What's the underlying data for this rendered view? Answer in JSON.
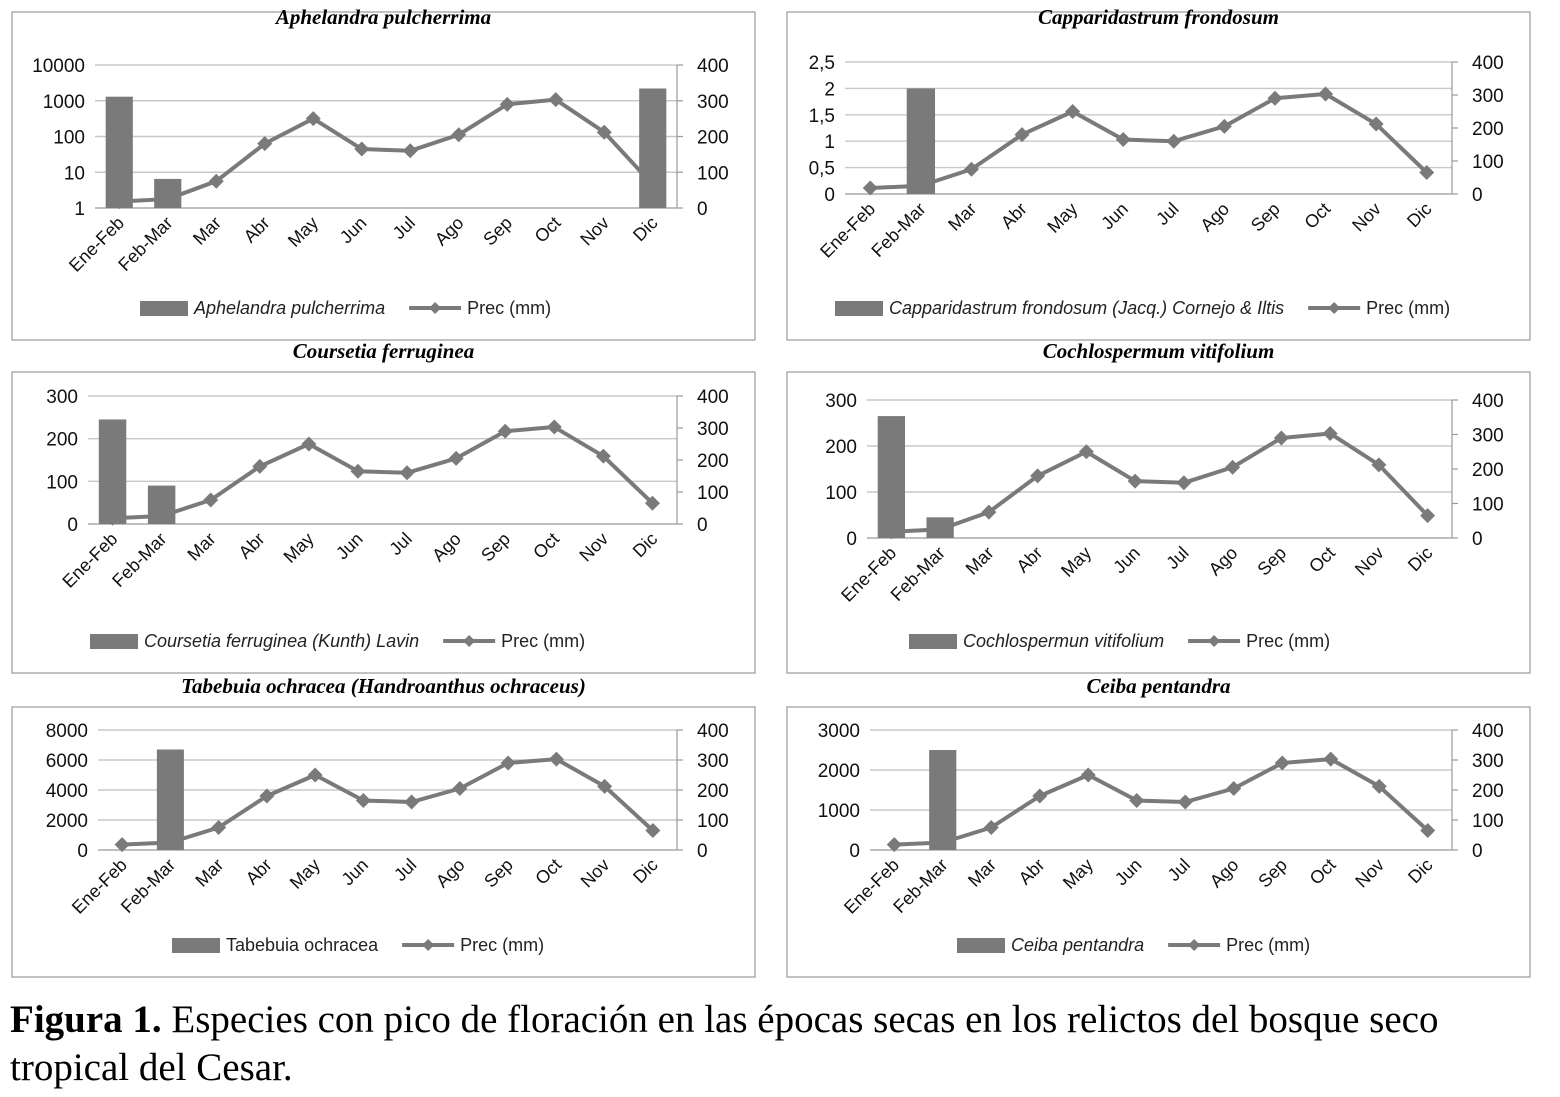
{
  "caption": {
    "label": "Figura 1.",
    "text": " Especies con pico de floración en las épocas secas en los relictos del bosque seco tropical del Cesar."
  },
  "style": {
    "bar_color": "#7a7a7a",
    "line_color": "#7a7a7a",
    "grid_color": "#c8c8c8",
    "frame_color": "#999999"
  },
  "legend": {
    "line_label": "Prec (mm)"
  },
  "chart_data": [
    {
      "type": "bar+line",
      "title": "Aphelandra pulcherrima",
      "categories": [
        "Ene-Feb",
        "Feb-Mar",
        "Mar",
        "Abr",
        "May",
        "Jun",
        "Jul",
        "Ago",
        "Sep",
        "Oct",
        "Nov",
        "Dic"
      ],
      "left_axis": {
        "scale": "log",
        "ylim": [
          1,
          10000
        ],
        "ticks": [
          1,
          10,
          100,
          1000,
          10000
        ],
        "tick_labels": [
          "1",
          "10",
          "100",
          "1000",
          "10000"
        ]
      },
      "right_axis": {
        "ylim": [
          0,
          400
        ],
        "ticks": [
          0,
          100,
          200,
          300,
          400
        ],
        "tick_labels": [
          "0",
          "100",
          "200",
          "300",
          "400"
        ]
      },
      "bars": {
        "name": "Aphelandra pulcherrima",
        "name_style": "italic",
        "values": [
          1300,
          6.5,
          null,
          null,
          null,
          null,
          null,
          null,
          null,
          null,
          null,
          2200
        ]
      },
      "line": {
        "name": "Prec (mm)",
        "values": [
          18,
          25,
          75,
          180,
          250,
          165,
          160,
          205,
          290,
          303,
          212,
          65
        ]
      }
    },
    {
      "type": "bar+line",
      "title": "Capparidastrum frondosum",
      "categories": [
        "Ene-Feb",
        "Feb-Mar",
        "Mar",
        "Abr",
        "May",
        "Jun",
        "Jul",
        "Ago",
        "Sep",
        "Oct",
        "Nov",
        "Dic"
      ],
      "left_axis": {
        "ylim": [
          0,
          2.5
        ],
        "ticks": [
          0,
          0.5,
          1,
          1.5,
          2,
          2.5
        ],
        "tick_labels": [
          "0",
          "0,5",
          "1",
          "1,5",
          "2",
          "2,5"
        ]
      },
      "right_axis": {
        "ylim": [
          0,
          400
        ],
        "ticks": [
          0,
          100,
          200,
          300,
          400
        ],
        "tick_labels": [
          "0",
          "100",
          "200",
          "300",
          "400"
        ]
      },
      "bars": {
        "name": "Capparidastrum frondosum (Jacq.) Cornejo & Iltis",
        "name_style": "italic",
        "values": [
          null,
          2,
          null,
          null,
          null,
          null,
          null,
          null,
          null,
          null,
          null,
          null
        ]
      },
      "line": {
        "name": "Prec (mm)",
        "values": [
          18,
          25,
          75,
          180,
          250,
          165,
          160,
          205,
          290,
          303,
          212,
          65
        ]
      }
    },
    {
      "type": "bar+line",
      "title": "Coursetia ferruginea",
      "categories": [
        "Ene-Feb",
        "Feb-Mar",
        "Mar",
        "Abr",
        "May",
        "Jun",
        "Jul",
        "Ago",
        "Sep",
        "Oct",
        "Nov",
        "Dic"
      ],
      "left_axis": {
        "ylim": [
          0,
          300
        ],
        "ticks": [
          0,
          100,
          200,
          300
        ],
        "tick_labels": [
          "0",
          "100",
          "200",
          "300"
        ]
      },
      "right_axis": {
        "ylim": [
          0,
          400
        ],
        "ticks": [
          0,
          100,
          200,
          300,
          400
        ],
        "tick_labels": [
          "0",
          "100",
          "200",
          "300",
          "400"
        ]
      },
      "bars": {
        "name": "Coursetia ferruginea (Kunth) Lavin",
        "name_style": "italic",
        "values": [
          245,
          90,
          null,
          null,
          null,
          null,
          null,
          null,
          null,
          null,
          null,
          null
        ]
      },
      "line": {
        "name": "Prec (mm)",
        "values": [
          18,
          25,
          75,
          180,
          250,
          165,
          160,
          205,
          290,
          303,
          212,
          65
        ]
      }
    },
    {
      "type": "bar+line",
      "title": "Cochlospermum  vitifolium",
      "categories": [
        "Ene-Feb",
        "Feb-Mar",
        "Mar",
        "Abr",
        "May",
        "Jun",
        "Jul",
        "Ago",
        "Sep",
        "Oct",
        "Nov",
        "Dic"
      ],
      "left_axis": {
        "ylim": [
          0,
          300
        ],
        "ticks": [
          0,
          100,
          200,
          300
        ],
        "tick_labels": [
          "0",
          "100",
          "200",
          "300"
        ]
      },
      "right_axis": {
        "ylim": [
          0,
          400
        ],
        "ticks": [
          0,
          100,
          200,
          300,
          400
        ],
        "tick_labels": [
          "0",
          "100",
          "200",
          "300",
          "400"
        ]
      },
      "bars": {
        "name": "Cochlospermun vitifolium",
        "name_style": "italic",
        "values": [
          265,
          45,
          null,
          null,
          null,
          null,
          null,
          null,
          null,
          null,
          null,
          null
        ]
      },
      "line": {
        "name": "Prec (mm)",
        "values": [
          18,
          25,
          75,
          180,
          250,
          165,
          160,
          205,
          290,
          303,
          212,
          65
        ]
      }
    },
    {
      "type": "bar+line",
      "title": "Tabebuia ochracea (Handroanthus ochraceus)",
      "categories": [
        "Ene-Feb",
        "Feb-Mar",
        "Mar",
        "Abr",
        "May",
        "Jun",
        "Jul",
        "Ago",
        "Sep",
        "Oct",
        "Nov",
        "Dic"
      ],
      "left_axis": {
        "ylim": [
          0,
          8000
        ],
        "ticks": [
          0,
          2000,
          4000,
          6000,
          8000
        ],
        "tick_labels": [
          "0",
          "2000",
          "4000",
          "6000",
          "8000"
        ]
      },
      "right_axis": {
        "ylim": [
          0,
          400
        ],
        "ticks": [
          0,
          100,
          200,
          300,
          400
        ],
        "tick_labels": [
          "0",
          "100",
          "200",
          "300",
          "400"
        ]
      },
      "bars": {
        "name": "Tabebuia ochracea",
        "name_style": "normal",
        "values": [
          null,
          6700,
          null,
          null,
          null,
          null,
          null,
          null,
          null,
          null,
          null,
          null
        ]
      },
      "line": {
        "name": "Prec (mm)",
        "values": [
          18,
          25,
          75,
          180,
          250,
          165,
          160,
          205,
          290,
          303,
          212,
          65
        ]
      }
    },
    {
      "type": "bar+line",
      "title": "Ceiba pentandra",
      "categories": [
        "Ene-Feb",
        "Feb-Mar",
        "Mar",
        "Abr",
        "May",
        "Jun",
        "Jul",
        "Ago",
        "Sep",
        "Oct",
        "Nov",
        "Dic"
      ],
      "left_axis": {
        "ylim": [
          0,
          3000
        ],
        "ticks": [
          0,
          1000,
          2000,
          3000
        ],
        "tick_labels": [
          "0",
          "1000",
          "2000",
          "3000"
        ]
      },
      "right_axis": {
        "ylim": [
          0,
          400
        ],
        "ticks": [
          0,
          100,
          200,
          300,
          400
        ],
        "tick_labels": [
          "0",
          "100",
          "200",
          "300",
          "400"
        ]
      },
      "bars": {
        "name": "Ceiba pentandra",
        "name_style": "italic",
        "values": [
          null,
          2500,
          null,
          null,
          null,
          null,
          null,
          null,
          null,
          null,
          null,
          null
        ]
      },
      "line": {
        "name": "Prec (mm)",
        "values": [
          18,
          25,
          75,
          180,
          250,
          165,
          160,
          205,
          290,
          303,
          212,
          65
        ]
      }
    }
  ]
}
